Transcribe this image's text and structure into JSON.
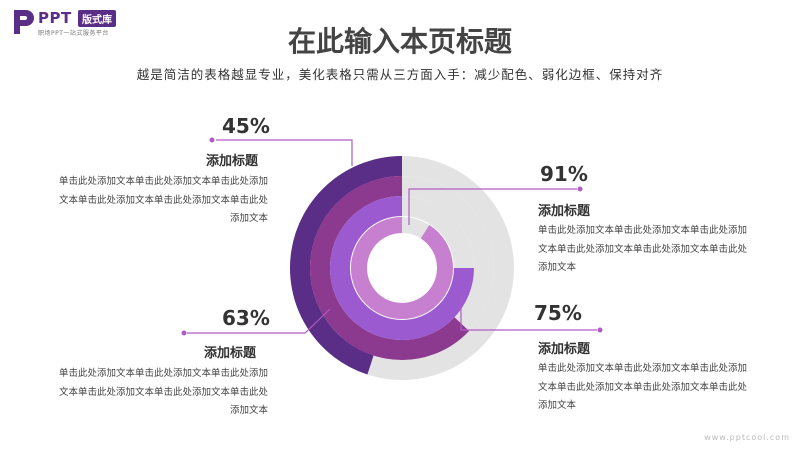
{
  "logo": {
    "brand": "PPT",
    "badge": "版式库",
    "tagline": "职场PPT一站式服务平台"
  },
  "title": "在此输入本页标题",
  "subtitle": "越是简洁的表格越显专业，美化表格只需从三方面入手：减少配色、弱化边框、保持对齐",
  "watermark": "www.pptcool.com",
  "colors": {
    "track": "#e3e3e3",
    "ring_outer": "#5a2d86",
    "ring_second": "#8c3a8f",
    "ring_third": "#9b5ad0",
    "ring_inner": "#c77fd0",
    "dot": "#b15bc4"
  },
  "chart_data": {
    "type": "radial-progress",
    "title": "",
    "series": [
      {
        "ring": "outer",
        "value": 45,
        "label": "45%",
        "heading": "添加标题",
        "text": "单击此处添加文本单击此处添加文本单击此处添加文本单击此处添加文本单击此处添加文本单击此处添加文本"
      },
      {
        "ring": "second",
        "value": 63,
        "label": "63%",
        "heading": "添加标题",
        "text": "单击此处添加文本单击此处添加文本单击此处添加文本单击此处添加文本单击此处添加文本单击此处添加文本"
      },
      {
        "ring": "third",
        "value": 75,
        "label": "75%",
        "heading": "添加标题",
        "text": "单击此处添加文本单击此处添加文本单击此处添加文本单击此处添加文本单击此处添加文本单击此处添加文本"
      },
      {
        "ring": "inner",
        "value": 91,
        "label": "91%",
        "heading": "添加标题",
        "text": "单击此处添加文本单击此处添加文本单击此处添加文本单击此处添加文本单击此处添加文本单击此处添加文本"
      }
    ]
  }
}
